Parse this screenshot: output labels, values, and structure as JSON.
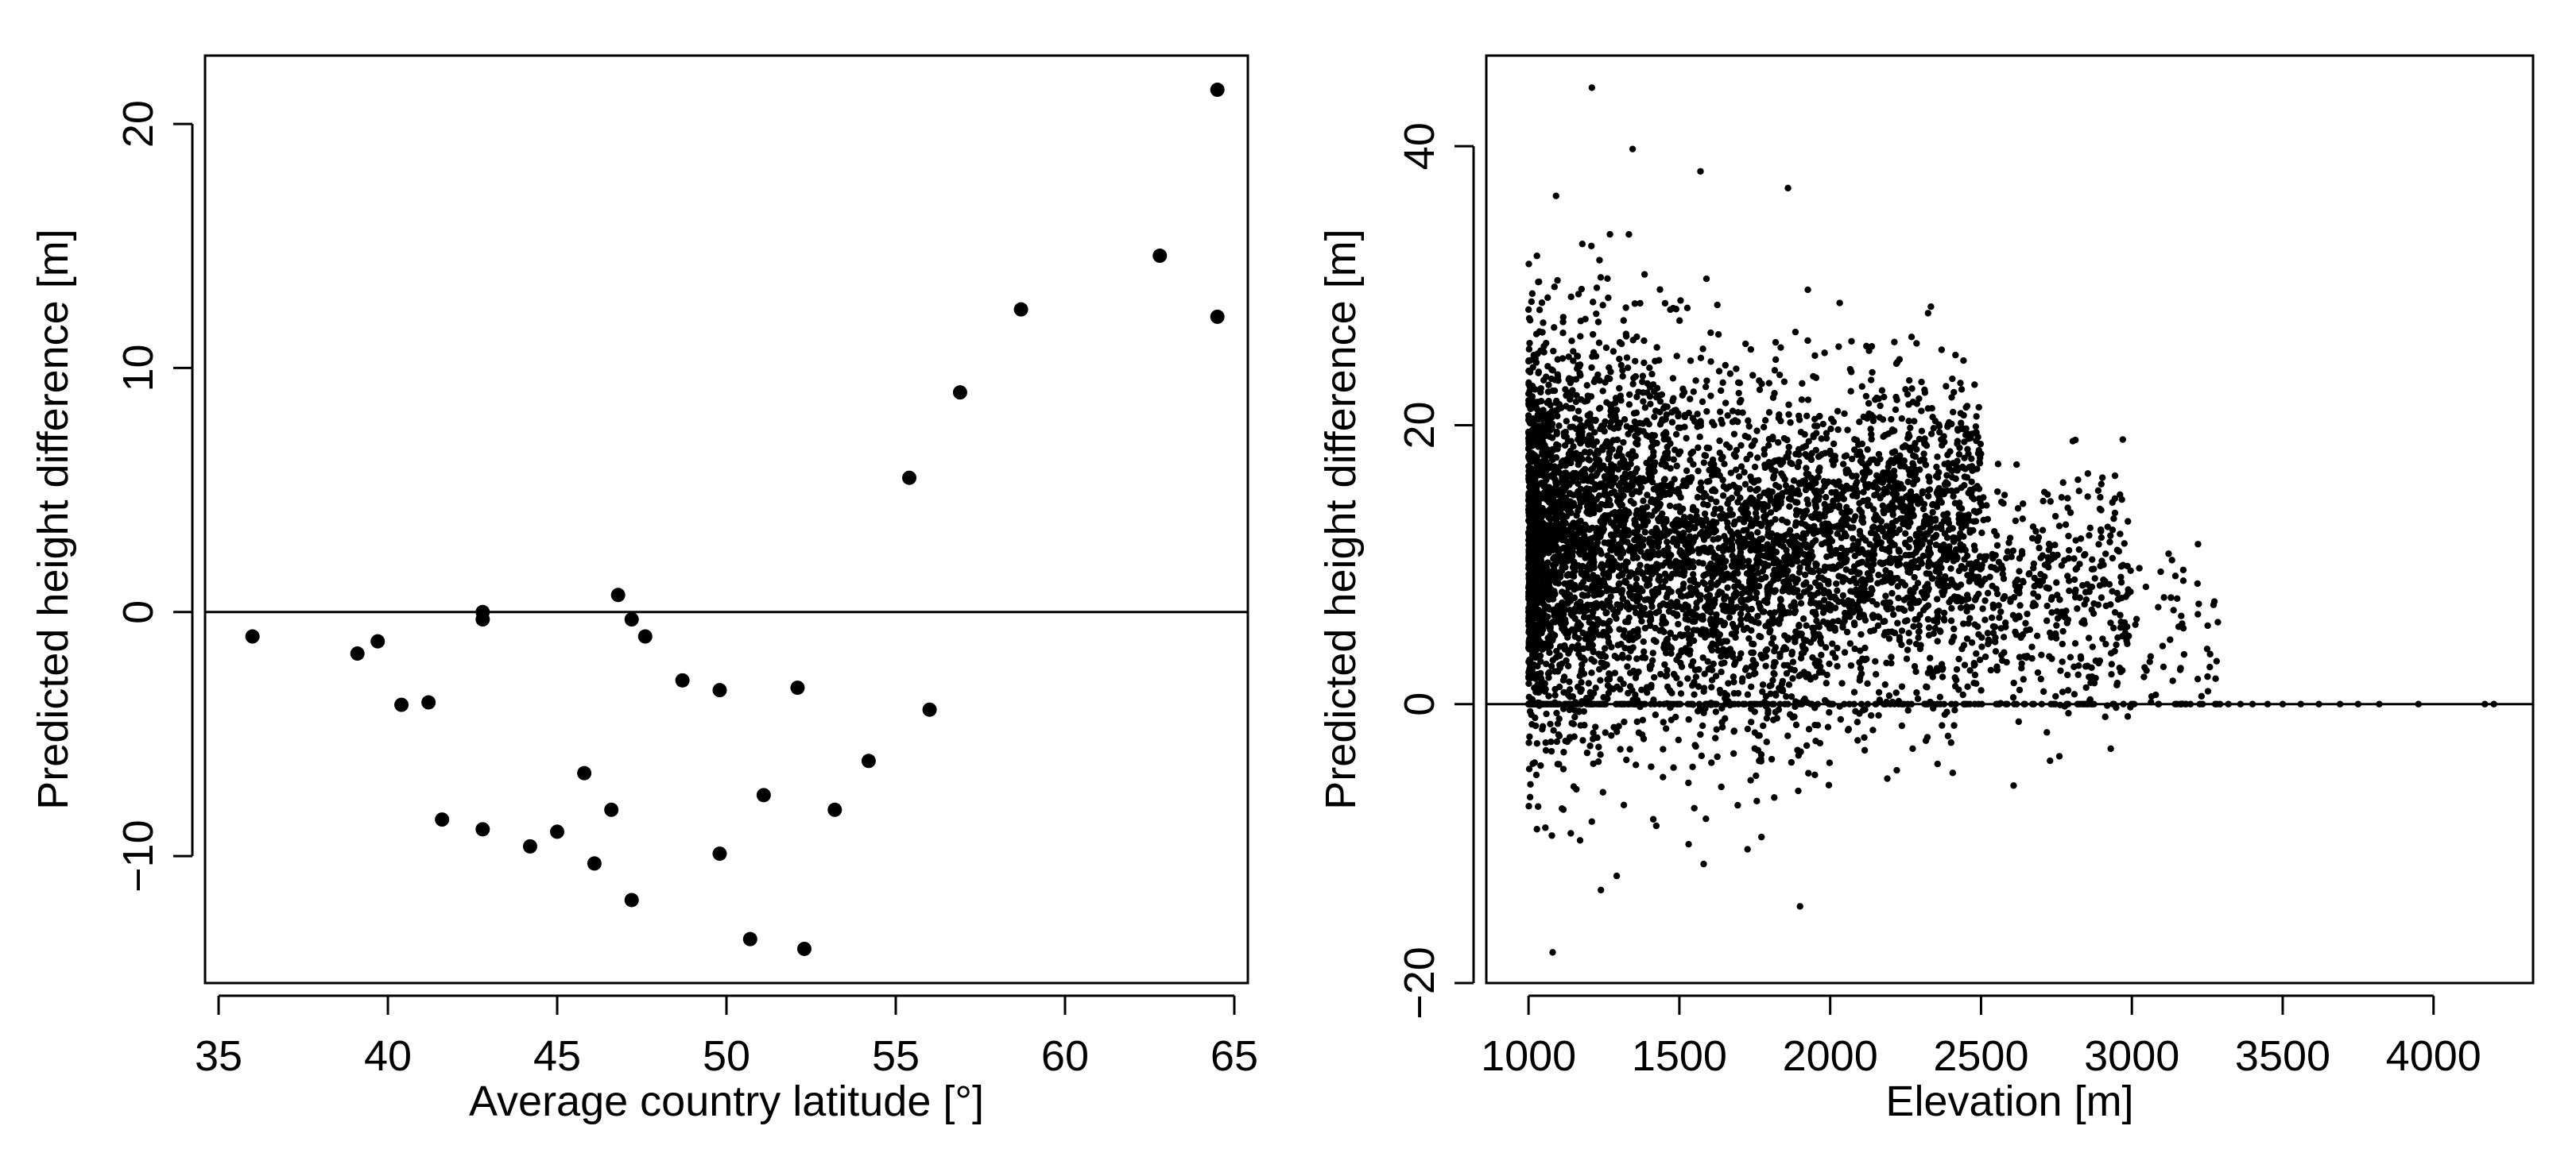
{
  "chart_data": [
    {
      "type": "scatter",
      "title": "",
      "xlabel": "Average country latitude [°]",
      "ylabel": "Predicted height difference [m]",
      "xlim": [
        34.6,
        65.4
      ],
      "ylim": [
        -15.2,
        22.8
      ],
      "xticks": [
        35,
        40,
        45,
        50,
        55,
        60,
        65
      ],
      "yticks": [
        -10,
        0,
        10,
        20
      ],
      "ytick_labels": [
        "−10",
        "0",
        "10",
        "20"
      ],
      "grid": false,
      "reference_line_y": 0,
      "point_color": "#000000",
      "points": [
        {
          "x": 36.0,
          "y": -1.0
        },
        {
          "x": 39.1,
          "y": -1.7
        },
        {
          "x": 39.7,
          "y": -1.2
        },
        {
          "x": 40.4,
          "y": -3.8
        },
        {
          "x": 41.2,
          "y": -3.7
        },
        {
          "x": 41.6,
          "y": -8.5
        },
        {
          "x": 42.8,
          "y": 0.0
        },
        {
          "x": 42.8,
          "y": -0.3
        },
        {
          "x": 42.8,
          "y": -8.9
        },
        {
          "x": 44.2,
          "y": -9.6
        },
        {
          "x": 45.0,
          "y": -9.0
        },
        {
          "x": 45.8,
          "y": -6.6
        },
        {
          "x": 46.1,
          "y": -10.3
        },
        {
          "x": 46.6,
          "y": -8.1
        },
        {
          "x": 46.8,
          "y": 0.7
        },
        {
          "x": 47.2,
          "y": -0.3
        },
        {
          "x": 47.2,
          "y": -11.8
        },
        {
          "x": 47.6,
          "y": -1.0
        },
        {
          "x": 48.7,
          "y": -2.8
        },
        {
          "x": 49.8,
          "y": -3.2
        },
        {
          "x": 49.8,
          "y": -9.9
        },
        {
          "x": 50.7,
          "y": -13.4
        },
        {
          "x": 51.1,
          "y": -7.5
        },
        {
          "x": 52.1,
          "y": -3.1
        },
        {
          "x": 52.3,
          "y": -13.8
        },
        {
          "x": 53.2,
          "y": -8.1
        },
        {
          "x": 54.2,
          "y": -6.1
        },
        {
          "x": 55.4,
          "y": 5.5
        },
        {
          "x": 56.0,
          "y": -4.0
        },
        {
          "x": 56.9,
          "y": 9.0
        },
        {
          "x": 58.7,
          "y": 12.4
        },
        {
          "x": 62.8,
          "y": 14.6
        },
        {
          "x": 64.5,
          "y": 12.1
        },
        {
          "x": 64.5,
          "y": 21.4
        }
      ]
    },
    {
      "type": "scatter",
      "title": "",
      "xlabel": "Elevation [m]",
      "ylabel": "Predicted height difference [m]",
      "xlim": [
        860,
        4330
      ],
      "ylim": [
        -20,
        46.5
      ],
      "xticks": [
        1000,
        1500,
        2000,
        2500,
        3000,
        3500,
        4000
      ],
      "yticks": [
        -20,
        0,
        20,
        40
      ],
      "ytick_labels": [
        "−20",
        "0",
        "20",
        "40"
      ],
      "grid": false,
      "reference_line_y": 0,
      "point_color": "#000000",
      "dense_regions": [
        {
          "x_range": [
            1000,
            1500
          ],
          "y_center": 12,
          "y_spread": 7,
          "y_min": -15,
          "y_max": 40,
          "relative_density": 1.0
        },
        {
          "x_range": [
            1500,
            2000
          ],
          "y_center": 10,
          "y_spread": 6.5,
          "y_min": -14,
          "y_max": 38,
          "relative_density": 0.55
        },
        {
          "x_range": [
            2000,
            2500
          ],
          "y_center": 12,
          "y_spread": 5.5,
          "y_min": -13,
          "y_max": 35,
          "relative_density": 0.45
        },
        {
          "x_range": [
            2500,
            3000
          ],
          "y_center": 8,
          "y_spread": 4.5,
          "y_min": -6,
          "y_max": 19,
          "relative_density": 0.15
        },
        {
          "x_range": [
            3000,
            3300
          ],
          "y_center": 4,
          "y_spread": 4,
          "y_min": 0,
          "y_max": 11.5,
          "relative_density": 0.02
        }
      ],
      "zero_value_x_range": [
        1000,
        4200
      ],
      "outliers": [
        {
          "x": 1210,
          "y": 44.2
        },
        {
          "x": 1345,
          "y": 39.8
        },
        {
          "x": 1570,
          "y": 38.2
        },
        {
          "x": 1860,
          "y": 37.0
        },
        {
          "x": 1080,
          "y": -17.8
        },
        {
          "x": 1900,
          "y": -14.5
        }
      ],
      "zero_markers_x": [
        3320,
        3360,
        3400,
        3450,
        3500,
        3560,
        3620,
        3690,
        3750,
        3820,
        3950,
        4170,
        4200
      ]
    }
  ]
}
